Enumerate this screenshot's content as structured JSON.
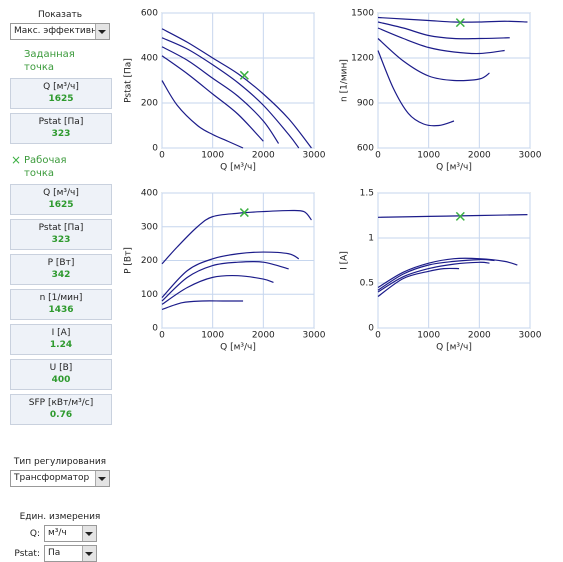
{
  "panel": {
    "show_label": "Показать",
    "show_select": "Макс. эффективн",
    "set_point": {
      "title": "Заданная точка",
      "fields": [
        {
          "label": "Q [м³/ч]",
          "value": "1625"
        },
        {
          "label": "Pstat [Па]",
          "value": "323"
        }
      ]
    },
    "work_point": {
      "icon": "×",
      "title": "Рабочая точка",
      "fields": [
        {
          "label": "Q [м³/ч]",
          "value": "1625"
        },
        {
          "label": "Pstat [Па]",
          "value": "323"
        },
        {
          "label": "P [Вт]",
          "value": "342"
        },
        {
          "label": "n [1/мин]",
          "value": "1436"
        },
        {
          "label": "I [A]",
          "value": "1.24"
        },
        {
          "label": "U [В]",
          "value": "400"
        },
        {
          "label": "SFP [кВт/м³/с]",
          "value": "0.76"
        }
      ]
    },
    "control_label": "Тип регулирования",
    "control_select": "Трансформатор",
    "units_label": "Един. измерения",
    "units": [
      {
        "label": "Q:",
        "select": "м³/ч"
      },
      {
        "label": "Pstat:",
        "select": "Па"
      }
    ]
  },
  "chart_data": [
    {
      "type": "line",
      "xlabel": "Q [м³/ч]",
      "ylabel": "Pstat [Па]",
      "xlim": [
        0,
        3000
      ],
      "xticks": [
        0,
        1000,
        2000,
        3000
      ],
      "ylim": [
        0,
        600
      ],
      "yticks": [
        0,
        200,
        400,
        600
      ],
      "grid": true,
      "series": [
        {
          "color": "#1c1c8a",
          "x": [
            0,
            500,
            1000,
            1500,
            2000,
            2500,
            2950
          ],
          "values": [
            530,
            470,
            400,
            330,
            240,
            130,
            0
          ]
        },
        {
          "color": "#1c1c8a",
          "x": [
            0,
            500,
            1000,
            1500,
            2000,
            2500,
            2700
          ],
          "values": [
            490,
            440,
            370,
            290,
            190,
            60,
            0
          ]
        },
        {
          "color": "#1c1c8a",
          "x": [
            0,
            500,
            1000,
            1500,
            2000,
            2300
          ],
          "values": [
            450,
            390,
            310,
            230,
            120,
            20
          ]
        },
        {
          "color": "#1c1c8a",
          "x": [
            0,
            500,
            1000,
            1500,
            2000
          ],
          "values": [
            410,
            330,
            240,
            150,
            30
          ]
        },
        {
          "color": "#1c1c8a",
          "x": [
            0,
            300,
            700,
            1000,
            1300,
            1600
          ],
          "values": [
            300,
            190,
            100,
            60,
            30,
            0
          ]
        }
      ],
      "point": {
        "x": 1625,
        "y": 323,
        "color": "#3cb043"
      }
    },
    {
      "type": "line",
      "xlabel": "Q [м³/ч]",
      "ylabel": "n [1/мин]",
      "xlim": [
        0,
        3000
      ],
      "xticks": [
        0,
        1000,
        2000,
        3000
      ],
      "ylim": [
        600,
        1500
      ],
      "yticks": [
        600,
        900,
        1200,
        1500
      ],
      "grid": true,
      "series": [
        {
          "color": "#1c1c8a",
          "x": [
            0,
            500,
            1000,
            1500,
            2000,
            2500,
            2950
          ],
          "values": [
            1470,
            1460,
            1450,
            1440,
            1440,
            1445,
            1440
          ]
        },
        {
          "color": "#1c1c8a",
          "x": [
            0,
            500,
            1000,
            1500,
            2000,
            2600
          ],
          "values": [
            1440,
            1400,
            1350,
            1330,
            1330,
            1335
          ]
        },
        {
          "color": "#1c1c8a",
          "x": [
            0,
            500,
            1000,
            1500,
            2000,
            2500
          ],
          "values": [
            1400,
            1330,
            1270,
            1240,
            1230,
            1250
          ]
        },
        {
          "color": "#1c1c8a",
          "x": [
            0,
            500,
            1000,
            1500,
            2000,
            2200
          ],
          "values": [
            1330,
            1180,
            1080,
            1050,
            1060,
            1100
          ]
        },
        {
          "color": "#1c1c8a",
          "x": [
            0,
            300,
            600,
            900,
            1200,
            1500
          ],
          "values": [
            1250,
            1000,
            830,
            760,
            750,
            780
          ]
        }
      ],
      "point": {
        "x": 1625,
        "y": 1436,
        "color": "#3cb043"
      }
    },
    {
      "type": "line",
      "xlabel": "Q [м³/ч]",
      "ylabel": "P [Вт]",
      "xlim": [
        0,
        3000
      ],
      "xticks": [
        0,
        1000,
        2000,
        3000
      ],
      "ylim": [
        0,
        400
      ],
      "yticks": [
        0,
        100,
        200,
        300,
        400
      ],
      "grid": true,
      "series": [
        {
          "color": "#1c1c8a",
          "x": [
            0,
            300,
            700,
            1000,
            1500,
            2000,
            2500,
            2800,
            2950
          ],
          "values": [
            190,
            240,
            300,
            330,
            340,
            345,
            348,
            345,
            320
          ]
        },
        {
          "color": "#1c1c8a",
          "x": [
            0,
            500,
            1000,
            1500,
            2000,
            2500,
            2700
          ],
          "values": [
            90,
            170,
            205,
            220,
            225,
            220,
            205
          ]
        },
        {
          "color": "#1c1c8a",
          "x": [
            0,
            500,
            1000,
            1500,
            2000,
            2500
          ],
          "values": [
            80,
            150,
            185,
            195,
            195,
            175
          ]
        },
        {
          "color": "#1c1c8a",
          "x": [
            0,
            500,
            1000,
            1500,
            2000,
            2200
          ],
          "values": [
            70,
            120,
            150,
            155,
            145,
            135
          ]
        },
        {
          "color": "#1c1c8a",
          "x": [
            0,
            400,
            800,
            1200,
            1600
          ],
          "values": [
            55,
            75,
            80,
            80,
            80
          ]
        }
      ],
      "point": {
        "x": 1625,
        "y": 342,
        "color": "#3cb043"
      }
    },
    {
      "type": "line",
      "xlabel": "Q [м³/ч]",
      "ylabel": "I [A]",
      "xlim": [
        0,
        3000
      ],
      "xticks": [
        0,
        1000,
        2000,
        3000
      ],
      "ylim": [
        0,
        1.5
      ],
      "yticks": [
        0,
        0.5,
        1,
        1.5
      ],
      "grid": true,
      "series": [
        {
          "color": "#1c1c8a",
          "x": [
            0,
            1000,
            2000,
            2950
          ],
          "values": [
            1.23,
            1.24,
            1.25,
            1.26
          ]
        },
        {
          "color": "#1c1c8a",
          "x": [
            0,
            500,
            1000,
            1500,
            2000,
            2500,
            2750
          ],
          "values": [
            0.45,
            0.62,
            0.72,
            0.77,
            0.77,
            0.74,
            0.7
          ]
        },
        {
          "color": "#1c1c8a",
          "x": [
            0,
            500,
            1000,
            1500,
            2000,
            2300
          ],
          "values": [
            0.42,
            0.6,
            0.7,
            0.74,
            0.76,
            0.75
          ]
        },
        {
          "color": "#1c1c8a",
          "x": [
            0,
            500,
            1000,
            1500,
            2000,
            2200
          ],
          "values": [
            0.4,
            0.57,
            0.66,
            0.71,
            0.73,
            0.72
          ]
        },
        {
          "color": "#1c1c8a",
          "x": [
            0,
            500,
            1000,
            1300,
            1600
          ],
          "values": [
            0.35,
            0.55,
            0.63,
            0.66,
            0.66
          ]
        }
      ],
      "point": {
        "x": 1625,
        "y": 1.24,
        "color": "#3cb043"
      }
    }
  ]
}
